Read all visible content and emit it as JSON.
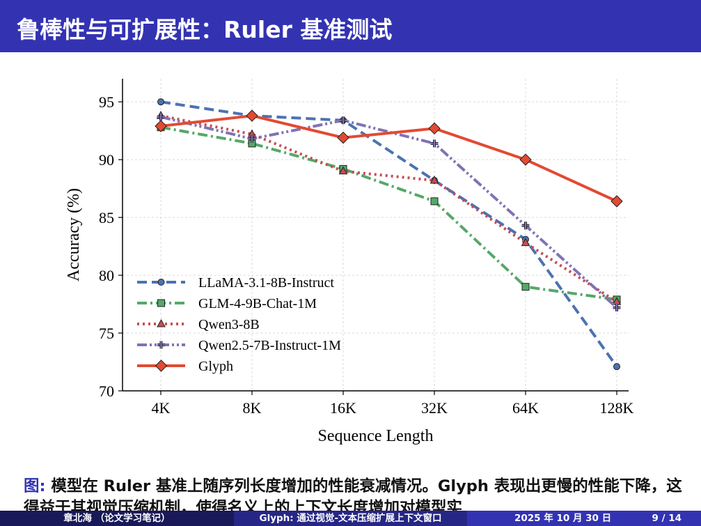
{
  "slide": {
    "title": "鲁棒性与可扩展性：Ruler 基准测试",
    "caption_label": "图:",
    "caption_text": "模型在 Ruler 基准上随序列长度增加的性能衰减情况。Glyph 表现出更慢的性能下降，这得益于其视觉压缩机制，使得名义上的上下文长度增加对模型实",
    "footer": {
      "author": "章北海 （论文学习笔记）",
      "short_title": "Glyph: 通过视觉-文本压缩扩展上下文窗口",
      "date": "2025 年 10 月 30 日",
      "page": "9 / 14"
    }
  },
  "colors": {
    "title_bg": "#3333b2",
    "caption_label": "#3333b2",
    "footer_left": "#191959",
    "footer_mid": "#262686",
    "footer_right": "#3333b2"
  },
  "chart_data": {
    "type": "line",
    "xlabel": "Sequence Length",
    "ylabel": "Accuracy (%)",
    "categories": [
      "4K",
      "8K",
      "16K",
      "32K",
      "64K",
      "128K"
    ],
    "ylim": [
      70,
      97
    ],
    "yticks": [
      70,
      75,
      80,
      85,
      90,
      95
    ],
    "grid": true,
    "legend_position": "lower-left",
    "series": [
      {
        "name": "LLaMA-3.1-8B-Instruct",
        "values": [
          95.0,
          93.8,
          93.4,
          88.2,
          83.1,
          72.1
        ],
        "color": "#4c72b0",
        "dash": "dashed",
        "marker": "circle"
      },
      {
        "name": "GLM-4-9B-Chat-1M",
        "values": [
          92.8,
          91.4,
          89.2,
          86.4,
          79.0,
          77.9
        ],
        "color": "#55a868",
        "dash": "dashdot",
        "marker": "square"
      },
      {
        "name": "Qwen3-8B",
        "values": [
          93.8,
          92.2,
          89.0,
          88.2,
          82.8,
          77.7
        ],
        "color": "#c44e52",
        "dash": "dotted",
        "marker": "triangle"
      },
      {
        "name": "Qwen2.5-7B-Instruct-1M",
        "values": [
          93.7,
          91.8,
          93.4,
          91.4,
          84.3,
          77.2
        ],
        "color": "#8172b3",
        "dash": "dashdotdot",
        "marker": "plus"
      },
      {
        "name": "Glyph",
        "values": [
          92.9,
          93.8,
          91.9,
          92.7,
          90.0,
          86.4
        ],
        "color": "#e24a33",
        "dash": "solid",
        "marker": "diamond"
      }
    ]
  }
}
